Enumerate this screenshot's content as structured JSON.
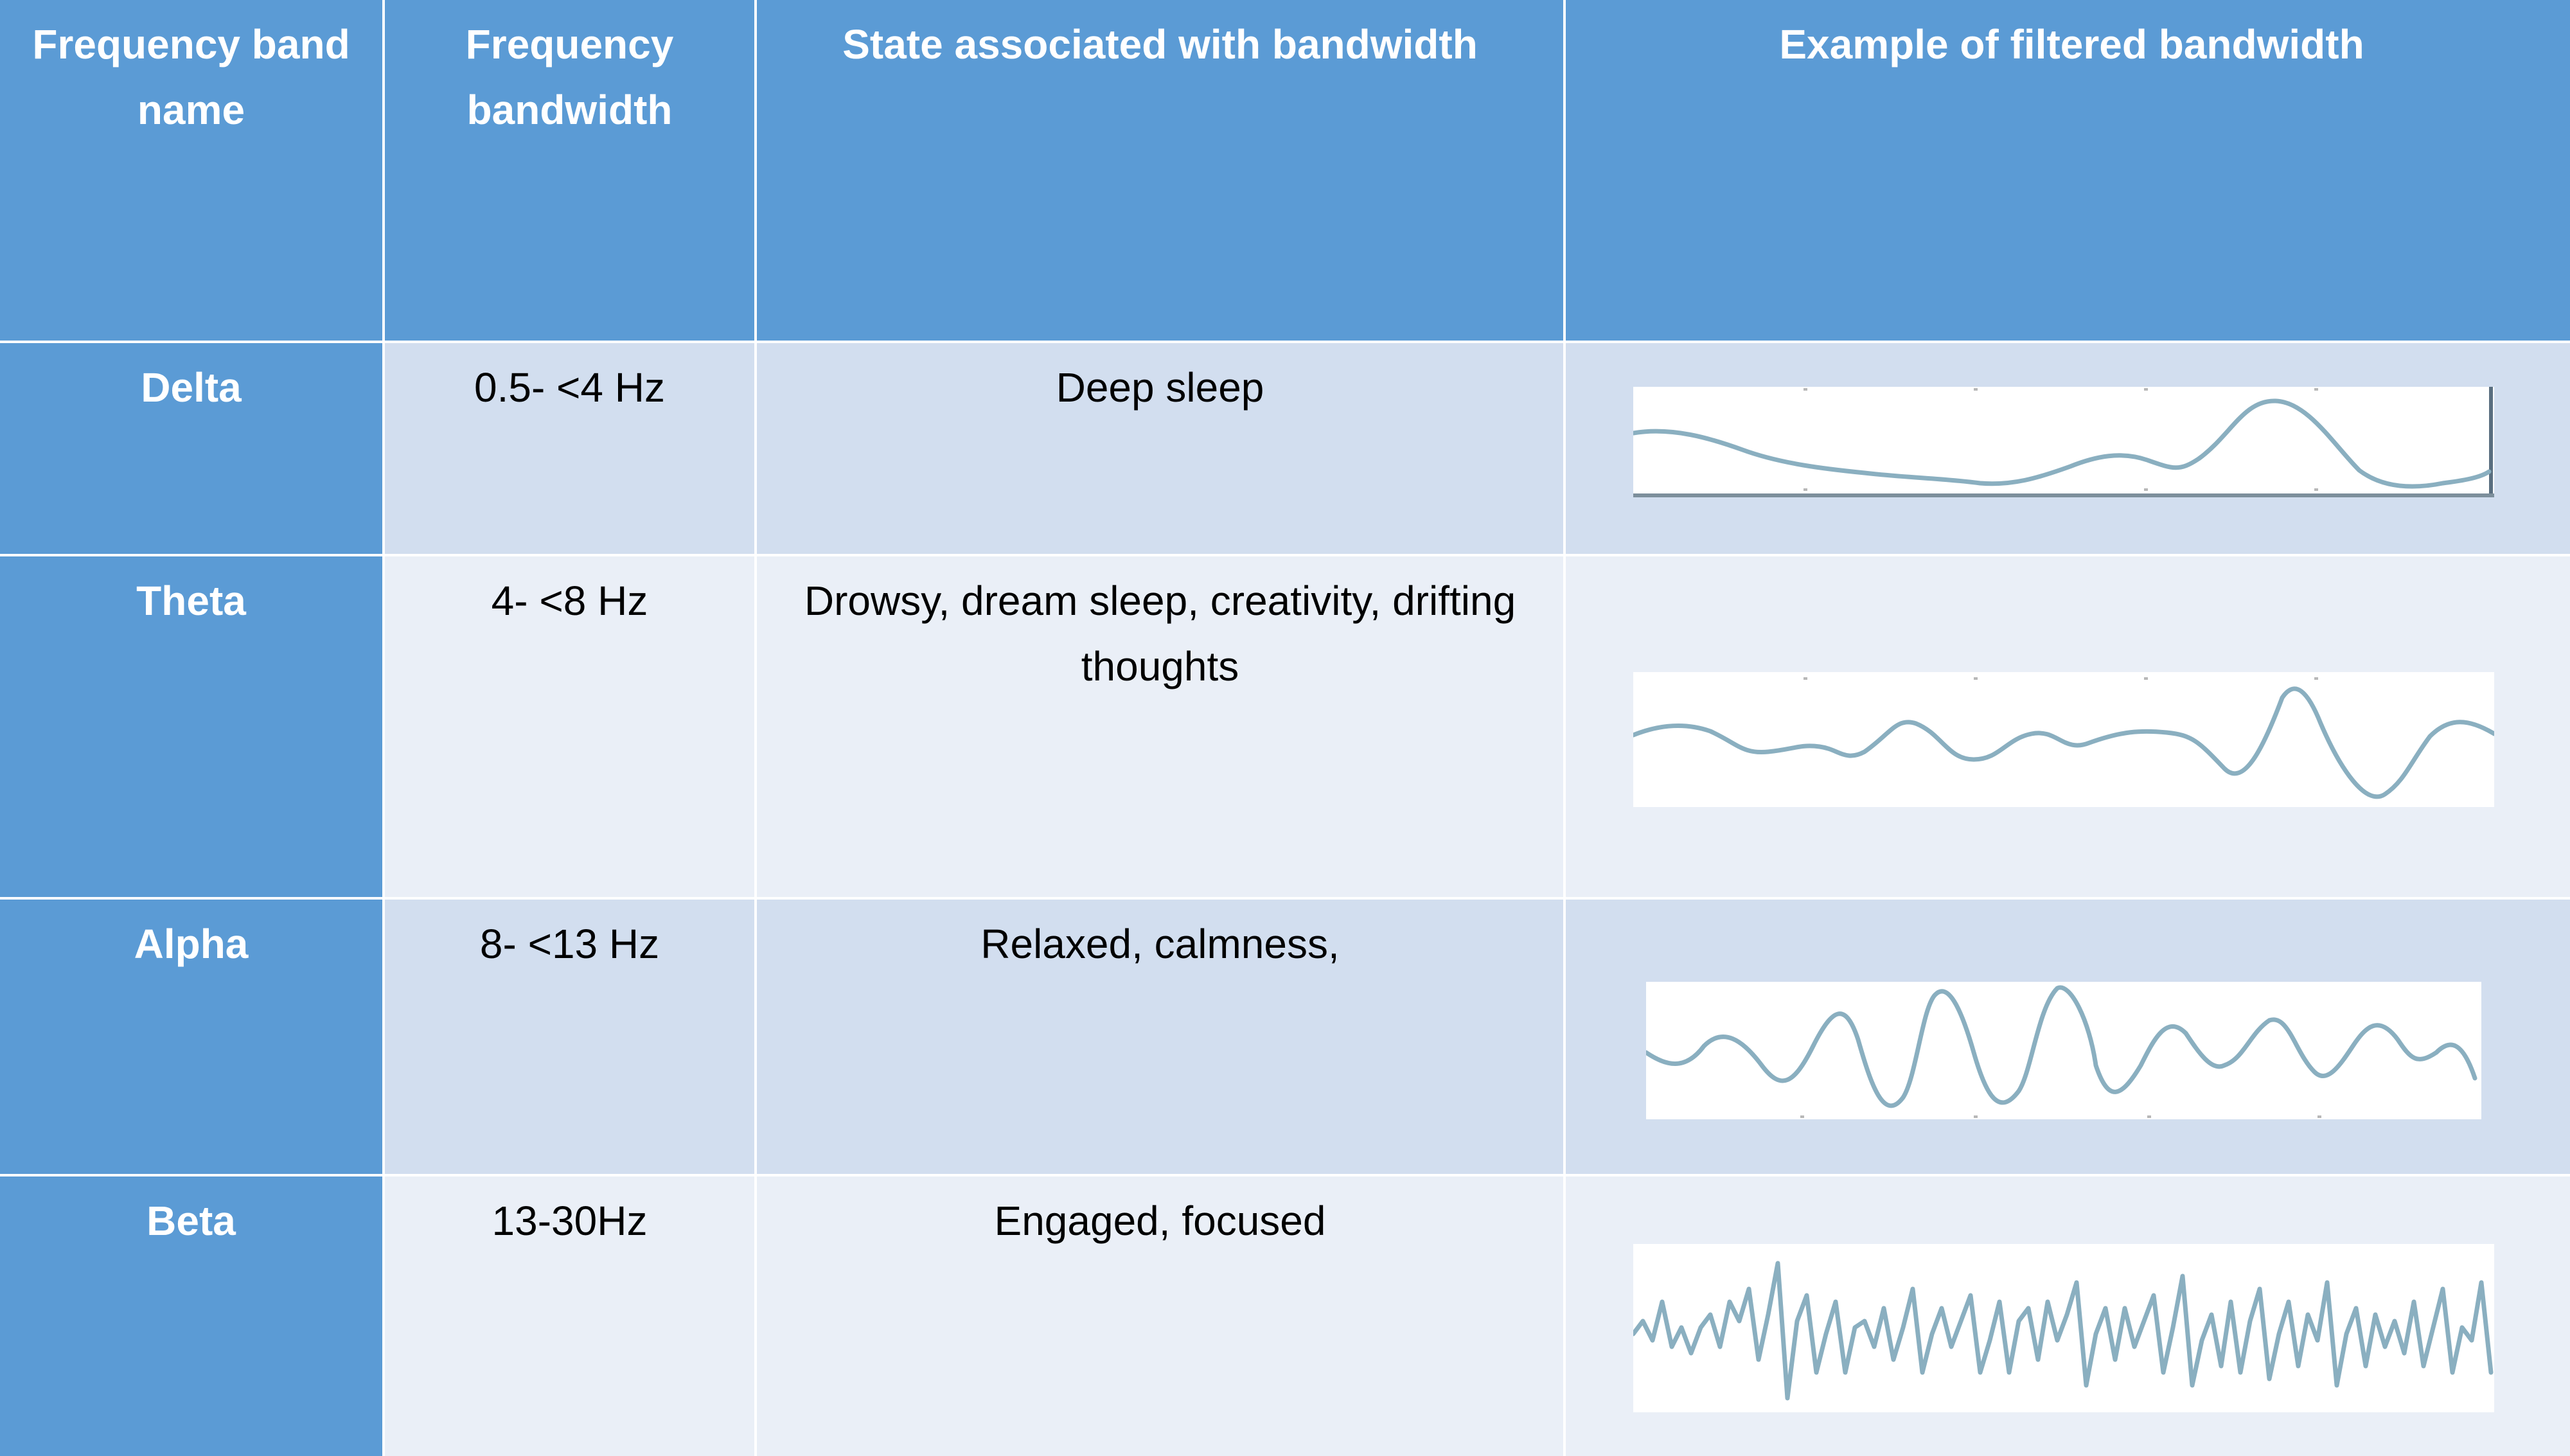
{
  "headers": [
    "Frequency band name",
    "Frequency bandwidth",
    "State associated with bandwidth",
    "Example of filtered bandwidth"
  ],
  "rows": [
    {
      "band": "Delta",
      "bandwidth": "0.5- <4 Hz",
      "state": "Deep sleep",
      "wave_icon": "delta-wave"
    },
    {
      "band": "Theta",
      "bandwidth": "4- <8 Hz",
      "state": "Drowsy, dream sleep, creativity, drifting thoughts",
      "wave_icon": "theta-wave"
    },
    {
      "band": "Alpha",
      "bandwidth": "8- <13 Hz",
      "state": "Relaxed, calmness,",
      "wave_icon": "alpha-wave"
    },
    {
      "band": "Beta",
      "bandwidth": "13-30Hz",
      "state": "Engaged, focused",
      "wave_icon": "beta-wave"
    }
  ],
  "colors": {
    "header_bg": "#5b9bd5",
    "row_odd_bg": "#d2deef",
    "row_even_bg": "#eaeff7",
    "wave_stroke": "#8aafc0"
  }
}
